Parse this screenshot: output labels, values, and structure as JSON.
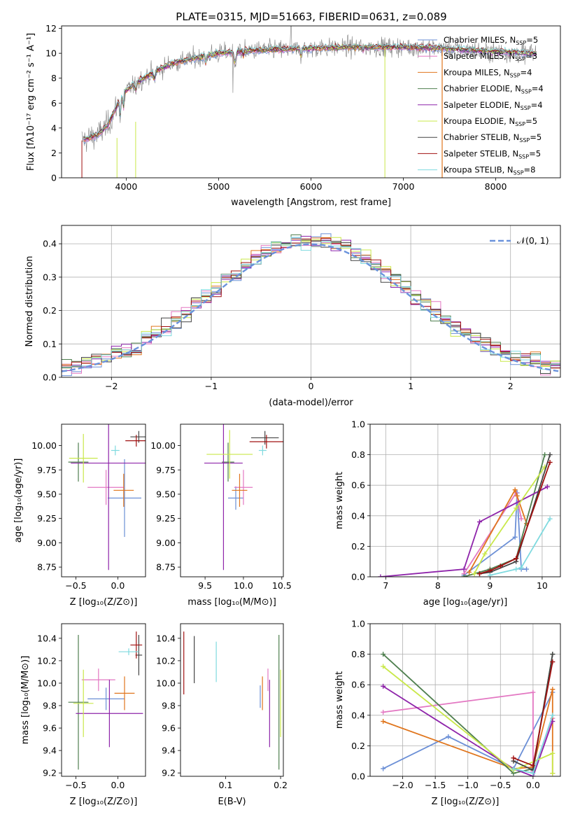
{
  "figure_title": "PLATE=0315, MJD=51663, FIBERID=0631, z=0.089",
  "colors": {
    "data": "#7f7f7f",
    "normal_curve": "#6a93dc",
    "grid": "#b0b0b0",
    "models": {
      "Chabrier MILES": "#6b8fd6",
      "Salpeter MILES": "#e377c2",
      "Kroupa MILES": "#e0761e",
      "Chabrier ELODIE": "#4f7f4f",
      "Salpeter ELODIE": "#8e24aa",
      "Kroupa ELODIE": "#c9e84a",
      "Chabrier STELIB": "#444444",
      "Salpeter STELIB": "#a01010",
      "Kroupa STELIB": "#7fdadf"
    }
  },
  "legend_entries": [
    {
      "label": "Chabrier MILES, N",
      "sub": "SSP",
      "suffix": "=5",
      "key": "Chabrier MILES"
    },
    {
      "label": "Salpeter MILES, N",
      "sub": "SSP",
      "suffix": "=3",
      "key": "Salpeter MILES"
    },
    {
      "label": "Kroupa MILES, N",
      "sub": "SSP",
      "suffix": "=4",
      "key": "Kroupa MILES"
    },
    {
      "label": "Chabrier ELODIE, N",
      "sub": "SSP",
      "suffix": "=4",
      "key": "Chabrier ELODIE"
    },
    {
      "label": "Salpeter ELODIE, N",
      "sub": "SSP",
      "suffix": "=4",
      "key": "Salpeter ELODIE"
    },
    {
      "label": "Kroupa ELODIE, N",
      "sub": "SSP",
      "suffix": "=5",
      "key": "Kroupa ELODIE"
    },
    {
      "label": "Chabrier STELIB, N",
      "sub": "SSP",
      "suffix": "=5",
      "key": "Chabrier STELIB"
    },
    {
      "label": "Salpeter STELIB, N",
      "sub": "SSP",
      "suffix": "=5",
      "key": "Salpeter STELIB"
    },
    {
      "label": "Kroupa STELIB, N",
      "sub": "SSP",
      "suffix": "=8",
      "key": "Kroupa STELIB"
    }
  ],
  "chart_data": [
    {
      "id": "spectrum",
      "type": "line",
      "xlabel": "wavelength [Angstrom, rest frame]",
      "ylabel": "Flux [fλ10⁻¹⁷ erg cm⁻² s⁻¹ A⁻¹]",
      "xlim": [
        3300,
        8700
      ],
      "ylim": [
        0,
        12.2
      ],
      "xticks": [
        4000,
        5000,
        6000,
        7000,
        8000
      ],
      "yticks": [
        0,
        2,
        4,
        6,
        8,
        10,
        12
      ],
      "continuum_x": [
        3520,
        3700,
        3800,
        3900,
        4000,
        4100,
        4300,
        4500,
        4800,
        5000,
        5300,
        5600,
        6000,
        6500,
        7000,
        7400,
        7800,
        8100,
        8400
      ],
      "continuum_y": [
        3.0,
        3.5,
        4.2,
        5.8,
        7.0,
        7.6,
        8.5,
        9.2,
        9.7,
        10.0,
        10.2,
        10.3,
        10.4,
        10.5,
        10.5,
        10.4,
        10.2,
        10.1,
        10.0
      ],
      "legend_position": "right"
    },
    {
      "id": "residuals",
      "type": "histogram",
      "xlabel": "(data-model)/error",
      "ylabel": "Normed distribution",
      "xlim": [
        -2.5,
        2.5
      ],
      "ylim": [
        0,
        0.455
      ],
      "xticks": [
        -2,
        -1,
        0,
        1,
        2
      ],
      "xtick_labels": [
        "−2",
        "−1",
        "0",
        "1",
        "2"
      ],
      "yticks": [
        0.0,
        0.1,
        0.2,
        0.3,
        0.4
      ],
      "ytick_labels": [
        "0.0",
        "0.1",
        "0.2",
        "0.3",
        "0.4"
      ],
      "bin_width": 0.1,
      "reference_curve": {
        "label": "𝒩(0, 1)",
        "mean": 0,
        "sigma": 1
      },
      "grid": true,
      "legend_position": "top-right"
    },
    {
      "id": "age-vs-Z",
      "type": "errorbar",
      "xlabel": "Z [log₁₀(Z/Z⊙)]",
      "ylabel": "age  [log₁₀(age/yr)]",
      "xlim": [
        -0.67,
        0.33
      ],
      "ylim": [
        8.65,
        10.22
      ],
      "xticks": [
        -0.5,
        0.0
      ],
      "xtick_labels": [
        "−0.5",
        "0.0"
      ],
      "yticks": [
        8.75,
        9.0,
        9.25,
        9.5,
        9.75,
        10.0
      ],
      "ytick_labels": [
        "8.75",
        "9.00",
        "9.25",
        "9.50",
        "9.75",
        "10.00"
      ],
      "points": [
        {
          "model": "Chabrier MILES",
          "x": 0.08,
          "xerr": 0.2,
          "y": 9.46,
          "yerr": 0.4
        },
        {
          "model": "Salpeter MILES",
          "x": -0.14,
          "xerr": 0.22,
          "y": 9.57,
          "yerr": 0.18
        },
        {
          "model": "Kroupa MILES",
          "x": 0.07,
          "xerr": 0.12,
          "y": 9.54,
          "yerr": 0.17
        },
        {
          "model": "Chabrier ELODIE",
          "x": -0.47,
          "xerr": 0.12,
          "y": 9.83,
          "yerr": 0.2
        },
        {
          "model": "Salpeter ELODIE",
          "x": -0.11,
          "xerr": 0.45,
          "y": 9.82,
          "yerr": 1.1
        },
        {
          "model": "Kroupa ELODIE",
          "x": -0.41,
          "xerr": 0.17,
          "y": 9.87,
          "yerr": 0.25
        },
        {
          "model": "Chabrier STELIB",
          "x": 0.25,
          "xerr": 0.1,
          "y": 10.09,
          "yerr": 0.06
        },
        {
          "model": "Salpeter STELIB",
          "x": 0.22,
          "xerr": 0.13,
          "y": 10.05,
          "yerr": 0.06
        },
        {
          "model": "Kroupa STELIB",
          "x": -0.03,
          "xerr": 0.05,
          "y": 9.95,
          "yerr": 0.05
        }
      ]
    },
    {
      "id": "age-vs-mass",
      "type": "errorbar",
      "xlabel": "mass [log₁₀(M/M⊙)]",
      "xlim": [
        9.18,
        10.52
      ],
      "ylim": [
        8.65,
        10.22
      ],
      "xticks": [
        9.5,
        10.0,
        10.5
      ],
      "xtick_labels": [
        "9.5",
        "10.0",
        "10.5"
      ],
      "yticks": [
        8.75,
        9.0,
        9.25,
        9.5,
        9.75,
        10.0
      ],
      "ytick_labels": [
        "8.75",
        "9.00",
        "9.25",
        "9.50",
        "9.75",
        "10.00"
      ],
      "points": [
        {
          "model": "Chabrier MILES",
          "x": 9.9,
          "xerr": 0.1,
          "y": 9.46,
          "yerr": 0.12
        },
        {
          "model": "Salpeter MILES",
          "x": 10.0,
          "xerr": 0.12,
          "y": 9.57,
          "yerr": 0.18
        },
        {
          "model": "Kroupa MILES",
          "x": 9.95,
          "xerr": 0.1,
          "y": 9.54,
          "yerr": 0.17
        },
        {
          "model": "Chabrier ELODIE",
          "x": 9.8,
          "xerr": 0.08,
          "y": 9.83,
          "yerr": 0.2
        },
        {
          "model": "Salpeter ELODIE",
          "x": 9.74,
          "xerr": 0.25,
          "y": 9.82,
          "yerr": 1.1
        },
        {
          "model": "Kroupa ELODIE",
          "x": 9.82,
          "xerr": 0.3,
          "y": 9.91,
          "yerr": 0.25
        },
        {
          "model": "Chabrier STELIB",
          "x": 10.28,
          "xerr": 0.18,
          "y": 10.08,
          "yerr": 0.07
        },
        {
          "model": "Salpeter STELIB",
          "x": 10.3,
          "xerr": 0.22,
          "y": 10.04,
          "yerr": 0.07
        },
        {
          "model": "Kroupa STELIB",
          "x": 10.25,
          "xerr": 0.05,
          "y": 9.95,
          "yerr": 0.05
        }
      ]
    },
    {
      "id": "mass-weight-vs-age",
      "type": "line",
      "xlabel": "age  [log₁₀(age/yr)]",
      "ylabel": "mass weight",
      "xlim": [
        6.7,
        10.35
      ],
      "ylim": [
        0,
        1.0
      ],
      "xticks": [
        7,
        8,
        9,
        10
      ],
      "yticks": [
        0.0,
        0.2,
        0.4,
        0.6,
        0.8,
        1.0
      ],
      "ytick_labels": [
        "0.0",
        "0.2",
        "0.4",
        "0.6",
        "0.8",
        "1.0"
      ],
      "series": [
        {
          "model": "Chabrier MILES",
          "x": [
            8.5,
            9.48,
            9.52,
            9.6,
            9.7
          ],
          "y": [
            0.01,
            0.26,
            0.55,
            0.05,
            0.05
          ]
        },
        {
          "model": "Salpeter MILES",
          "x": [
            8.5,
            9.5,
            9.6
          ],
          "y": [
            0.02,
            0.55,
            0.38
          ]
        },
        {
          "model": "Kroupa MILES",
          "x": [
            8.6,
            9.48,
            9.52,
            9.7
          ],
          "y": [
            0.03,
            0.57,
            0.53,
            0.35
          ]
        },
        {
          "model": "Chabrier ELODIE",
          "x": [
            8.5,
            9.0,
            9.5,
            10.05
          ],
          "y": [
            0.0,
            0.05,
            0.12,
            0.8
          ]
        },
        {
          "model": "Salpeter ELODIE",
          "x": [
            6.9,
            8.5,
            8.8,
            10.1
          ],
          "y": [
            0.0,
            0.05,
            0.36,
            0.59
          ]
        },
        {
          "model": "Kroupa ELODIE",
          "x": [
            8.7,
            8.9,
            9.5,
            10.05
          ],
          "y": [
            0.02,
            0.15,
            0.45,
            0.72
          ]
        },
        {
          "model": "Chabrier STELIB",
          "x": [
            8.8,
            9.0,
            9.5,
            10.15
          ],
          "y": [
            0.02,
            0.03,
            0.1,
            0.8
          ]
        },
        {
          "model": "Salpeter STELIB",
          "x": [
            8.8,
            9.0,
            9.2,
            9.5,
            10.15
          ],
          "y": [
            0.02,
            0.04,
            0.07,
            0.12,
            0.75
          ]
        },
        {
          "model": "Kroupa STELIB",
          "x": [
            9.0,
            9.5,
            9.6,
            10.15
          ],
          "y": [
            0.01,
            0.05,
            0.06,
            0.38
          ]
        }
      ]
    },
    {
      "id": "mass-vs-Z",
      "type": "errorbar",
      "xlabel": "Z [log₁₀(Z/Z⊙)]",
      "ylabel": "mass [log₁₀(M/M⊙)]",
      "xlim": [
        -0.67,
        0.33
      ],
      "ylim": [
        9.17,
        10.53
      ],
      "xticks": [
        -0.5,
        0.0
      ],
      "xtick_labels": [
        "−0.5",
        "0.0"
      ],
      "yticks": [
        9.2,
        9.4,
        9.6,
        9.8,
        10.0,
        10.2,
        10.4
      ],
      "ytick_labels": [
        "9.2",
        "9.4",
        "9.6",
        "9.8",
        "10.0",
        "10.2",
        "10.4"
      ],
      "points": [
        {
          "model": "Chabrier MILES",
          "x": -0.14,
          "xerr": 0.22,
          "y": 9.86,
          "yerr": 0.1
        },
        {
          "model": "Salpeter MILES",
          "x": -0.23,
          "xerr": 0.2,
          "y": 10.03,
          "yerr": 0.1
        },
        {
          "model": "Kroupa MILES",
          "x": 0.08,
          "xerr": 0.12,
          "y": 9.91,
          "yerr": 0.15
        },
        {
          "model": "Chabrier ELODIE",
          "x": -0.47,
          "xerr": 0.12,
          "y": 9.83,
          "yerr": 0.6
        },
        {
          "model": "Salpeter ELODIE",
          "x": -0.1,
          "xerr": 0.4,
          "y": 9.73,
          "yerr": 0.3
        },
        {
          "model": "Kroupa ELODIE",
          "x": -0.41,
          "xerr": 0.12,
          "y": 9.82,
          "yerr": 0.3
        },
        {
          "model": "Chabrier STELIB",
          "x": 0.25,
          "xerr": 0.04,
          "y": 10.25,
          "yerr": 0.18
        },
        {
          "model": "Salpeter STELIB",
          "x": 0.22,
          "xerr": 0.07,
          "y": 10.34,
          "yerr": 0.12
        },
        {
          "model": "Kroupa STELIB",
          "x": 0.13,
          "xerr": 0.12,
          "y": 10.28,
          "yerr": 0.03
        }
      ]
    },
    {
      "id": "mass-vs-EBV",
      "type": "errorbar",
      "xlabel": "E(B-V)",
      "xlim": [
        0.018,
        0.205
      ],
      "ylim": [
        9.17,
        10.53
      ],
      "xticks": [
        0.1,
        0.2
      ],
      "xtick_labels": [
        "0.1",
        "0.2"
      ],
      "yticks": [
        9.2,
        9.4,
        9.6,
        9.8,
        10.0,
        10.2,
        10.4
      ],
      "ytick_labels": [
        "9.2",
        "9.4",
        "9.6",
        "9.8",
        "10.0",
        "10.2",
        "10.4"
      ],
      "points": [
        {
          "model": "Chabrier MILES",
          "x": 0.163,
          "xerr": 0,
          "y": 9.88,
          "yerr": 0.1
        },
        {
          "model": "Salpeter MILES",
          "x": 0.177,
          "xerr": 0,
          "y": 10.03,
          "yerr": 0.1
        },
        {
          "model": "Kroupa MILES",
          "x": 0.167,
          "xerr": 0,
          "y": 9.91,
          "yerr": 0.15
        },
        {
          "model": "Chabrier ELODIE",
          "x": 0.197,
          "xerr": 0,
          "y": 9.83,
          "yerr": 0.6
        },
        {
          "model": "Salpeter ELODIE",
          "x": 0.18,
          "xerr": 0,
          "y": 9.73,
          "yerr": 0.3
        },
        {
          "model": "Kroupa ELODIE",
          "x": 0.2,
          "xerr": 0,
          "y": 9.82,
          "yerr": 0.3
        },
        {
          "model": "Chabrier STELIB",
          "x": 0.043,
          "xerr": 0,
          "y": 10.21,
          "yerr": 0.21
        },
        {
          "model": "Salpeter STELIB",
          "x": 0.024,
          "xerr": 0,
          "y": 10.18,
          "yerr": 0.28
        },
        {
          "model": "Kroupa STELIB",
          "x": 0.083,
          "xerr": 0,
          "y": 10.19,
          "yerr": 0.18
        }
      ]
    },
    {
      "id": "mass-weight-vs-Z",
      "type": "line",
      "xlabel": "Z [log₁₀(Z/Z⊙)]",
      "ylabel": "mass weight",
      "xlim": [
        -2.5,
        0.42
      ],
      "ylim": [
        0,
        1.0
      ],
      "xticks": [
        -2.0,
        -1.5,
        -1.0,
        -0.5,
        0.0
      ],
      "xtick_labels": [
        "−2.0",
        "−1.5",
        "−1.0",
        "−0.5",
        "0.0"
      ],
      "yticks": [
        0.0,
        0.2,
        0.4,
        0.6,
        0.8,
        1.0
      ],
      "ytick_labels": [
        "0.0",
        "0.2",
        "0.4",
        "0.6",
        "0.8",
        "1.0"
      ],
      "series": [
        {
          "model": "Chabrier MILES",
          "x": [
            -2.3,
            -1.3,
            -0.3,
            0.3
          ],
          "y": [
            0.05,
            0.26,
            0.05,
            0.55
          ]
        },
        {
          "model": "Salpeter MILES",
          "x": [
            -2.3,
            0.0,
            0.0,
            0.3
          ],
          "y": [
            0.42,
            0.55,
            0.03,
            0.38
          ]
        },
        {
          "model": "Kroupa MILES",
          "x": [
            -2.3,
            -0.3,
            0.0,
            0.3,
            0.3
          ],
          "y": [
            0.36,
            0.05,
            0.06,
            0.57,
            0.02
          ]
        },
        {
          "model": "Chabrier ELODIE",
          "x": [
            -2.3,
            -0.3,
            0.0,
            0.3
          ],
          "y": [
            0.8,
            0.02,
            0.05,
            0.8
          ]
        },
        {
          "model": "Salpeter ELODIE",
          "x": [
            -2.3,
            -0.3,
            0.0,
            0.3
          ],
          "y": [
            0.59,
            0.05,
            0.0,
            0.36
          ]
        },
        {
          "model": "Kroupa ELODIE",
          "x": [
            -2.3,
            -0.3,
            0.3,
            0.3
          ],
          "y": [
            0.72,
            0.04,
            0.15,
            0.02
          ]
        },
        {
          "model": "Chabrier STELIB",
          "x": [
            -0.3,
            0.0,
            0.3
          ],
          "y": [
            0.1,
            0.04,
            0.8
          ]
        },
        {
          "model": "Salpeter STELIB",
          "x": [
            -0.3,
            0.0,
            0.3
          ],
          "y": [
            0.12,
            0.07,
            0.75
          ]
        },
        {
          "model": "Kroupa STELIB",
          "x": [
            -0.3,
            0.0,
            0.3
          ],
          "y": [
            0.05,
            0.02,
            0.4
          ]
        }
      ]
    }
  ]
}
